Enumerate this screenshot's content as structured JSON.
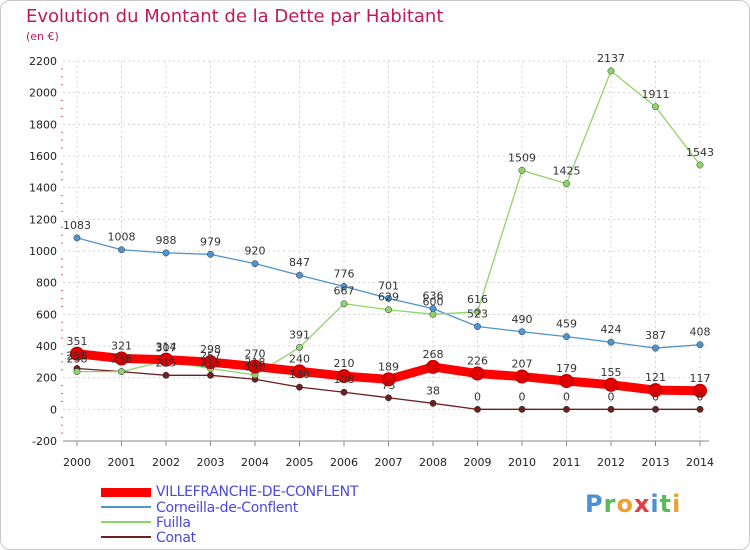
{
  "title": "Evolution du Montant de la Dette par Habitant",
  "subtitle": "(en €)",
  "chart_data": {
    "type": "line",
    "title": "Evolution du Montant de la Dette par Habitant",
    "ylabel": "(en €)",
    "x": [
      "2000",
      "2001",
      "2002",
      "2003",
      "2004",
      "2005",
      "2006",
      "2007",
      "2008",
      "2009",
      "2010",
      "2011",
      "2012",
      "2013",
      "2014"
    ],
    "ylim": [
      -200,
      2200
    ],
    "yticks": [
      -200,
      0,
      200,
      400,
      600,
      800,
      1000,
      1200,
      1400,
      1600,
      1800,
      2000,
      2200
    ],
    "grid": true,
    "legend_position": "bottom-left",
    "series": [
      {
        "name": "VILLEFRANCHE-DE-CONFLENT",
        "color": "#ff0000",
        "values": [
          351,
          321,
          314,
          298,
          270,
          240,
          210,
          189,
          268,
          226,
          207,
          179,
          155,
          121,
          117
        ]
      },
      {
        "name": "Corneilla-de-Conflent",
        "color": "#4f94cd",
        "values": [
          1083,
          1008,
          988,
          979,
          920,
          847,
          776,
          701,
          636,
          523,
          490,
          459,
          424,
          387,
          408
        ]
      },
      {
        "name": "Fuilla",
        "color": "#8fd46a",
        "values": [
          238,
          238,
          307,
          257,
          218,
          391,
          667,
          629,
          600,
          616,
          1509,
          1425,
          2137,
          1911,
          1543
        ]
      },
      {
        "name": "Conat",
        "color": "#6b1f1f",
        "values": [
          258,
          238,
          215,
          215,
          190,
          140,
          108,
          73,
          38,
          0,
          0,
          0,
          0,
          0,
          0
        ]
      }
    ]
  },
  "logo": {
    "letters": [
      "P",
      "r",
      "o",
      "x",
      "i",
      "t",
      "i"
    ],
    "colors": [
      "#4a8fd8",
      "#5cb85c",
      "#f0a030",
      "#e04040",
      "#4a8fd8",
      "#5cb85c",
      "#f0a030"
    ]
  }
}
